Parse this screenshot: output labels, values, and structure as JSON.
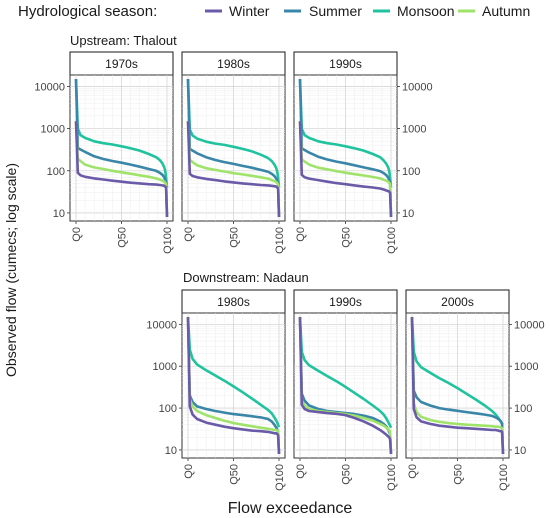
{
  "legend": {
    "title": "Hydrological season:",
    "items": [
      {
        "label": "Winter",
        "color": "#6a5aa8"
      },
      {
        "label": "Summer",
        "color": "#3a86a8"
      },
      {
        "label": "Monsoon",
        "color": "#1fc39e"
      },
      {
        "label": "Autumn",
        "color": "#9fe36a"
      }
    ]
  },
  "axes": {
    "ylabel": "Observed flow (cumecs; log scale)",
    "xlabel": "Flow exceedance",
    "x_ticks": [
      "Q0",
      "Q50",
      "Q100"
    ],
    "y_ticks": [
      "10",
      "100",
      "1000",
      "10000"
    ]
  },
  "chart_data": [
    {
      "type": "line",
      "group": "Upstream: Thalout",
      "title": "1970s",
      "x": [
        0,
        2,
        5,
        10,
        20,
        30,
        40,
        50,
        60,
        70,
        80,
        88,
        92,
        95,
        97,
        98,
        99,
        100
      ],
      "series": [
        {
          "name": "Winter",
          "values": [
            1500,
            90,
            78,
            72,
            66,
            62,
            58,
            55,
            52,
            50,
            48,
            47,
            46,
            45,
            44,
            42,
            40,
            7
          ]
        },
        {
          "name": "Summer",
          "values": [
            15000,
            350,
            320,
            280,
            220,
            190,
            170,
            155,
            140,
            125,
            110,
            100,
            90,
            80,
            70,
            60,
            50,
            7
          ]
        },
        {
          "name": "Monsoon",
          "values": [
            15000,
            1000,
            700,
            600,
            500,
            450,
            420,
            380,
            340,
            300,
            250,
            210,
            180,
            150,
            120,
            100,
            70,
            40
          ]
        },
        {
          "name": "Autumn",
          "values": [
            1500,
            190,
            170,
            140,
            120,
            110,
            100,
            92,
            85,
            78,
            72,
            66,
            62,
            58,
            55,
            52,
            48,
            7
          ]
        }
      ],
      "ylim": [
        8,
        15000
      ],
      "ylog": true
    },
    {
      "type": "line",
      "group": "Upstream: Thalout",
      "title": "1980s",
      "x": [
        0,
        2,
        5,
        10,
        20,
        30,
        40,
        50,
        60,
        70,
        80,
        88,
        92,
        95,
        97,
        98,
        99,
        100
      ],
      "series": [
        {
          "name": "Winter",
          "values": [
            1500,
            85,
            75,
            70,
            64,
            60,
            56,
            53,
            50,
            48,
            46,
            45,
            44,
            43,
            42,
            40,
            38,
            7
          ]
        },
        {
          "name": "Summer",
          "values": [
            15000,
            330,
            300,
            260,
            210,
            180,
            160,
            145,
            130,
            118,
            105,
            95,
            85,
            75,
            65,
            58,
            50,
            7
          ]
        },
        {
          "name": "Monsoon",
          "values": [
            15000,
            950,
            680,
            580,
            490,
            440,
            410,
            370,
            330,
            290,
            240,
            200,
            170,
            140,
            115,
            95,
            70,
            40
          ]
        },
        {
          "name": "Autumn",
          "values": [
            1500,
            180,
            160,
            135,
            115,
            105,
            96,
            88,
            82,
            76,
            70,
            65,
            60,
            57,
            54,
            51,
            47,
            7
          ]
        }
      ],
      "ylim": [
        8,
        15000
      ],
      "ylog": true
    },
    {
      "type": "line",
      "group": "Upstream: Thalout",
      "title": "1990s",
      "x": [
        0,
        2,
        5,
        10,
        20,
        30,
        40,
        50,
        60,
        70,
        80,
        88,
        92,
        95,
        97,
        98,
        99,
        100
      ],
      "series": [
        {
          "name": "Winter",
          "values": [
            1500,
            80,
            70,
            65,
            60,
            55,
            51,
            48,
            45,
            42,
            40,
            38,
            36,
            34,
            33,
            32,
            30,
            7
          ]
        },
        {
          "name": "Summer",
          "values": [
            15000,
            340,
            310,
            270,
            215,
            185,
            165,
            150,
            135,
            120,
            108,
            98,
            88,
            78,
            68,
            60,
            52,
            7
          ]
        },
        {
          "name": "Monsoon",
          "values": [
            15000,
            980,
            700,
            600,
            500,
            450,
            420,
            380,
            340,
            300,
            250,
            210,
            175,
            145,
            118,
            98,
            70,
            40
          ]
        },
        {
          "name": "Autumn",
          "values": [
            1500,
            185,
            165,
            140,
            118,
            108,
            98,
            90,
            83,
            77,
            71,
            66,
            61,
            58,
            55,
            52,
            48,
            7
          ]
        }
      ],
      "ylim": [
        8,
        15000
      ],
      "ylog": true
    },
    {
      "type": "line",
      "group": "Downstream: Nadaun",
      "title": "1980s",
      "x": [
        0,
        2,
        5,
        10,
        20,
        30,
        40,
        50,
        60,
        70,
        80,
        88,
        92,
        95,
        97,
        98,
        99,
        100
      ],
      "series": [
        {
          "name": "Winter",
          "values": [
            15000,
            110,
            70,
            55,
            45,
            40,
            36,
            33,
            31,
            29,
            28,
            27,
            26,
            25,
            25,
            24,
            23,
            7
          ]
        },
        {
          "name": "Summer",
          "values": [
            15000,
            200,
            140,
            110,
            95,
            85,
            78,
            72,
            68,
            64,
            60,
            55,
            48,
            40,
            34,
            30,
            28,
            7
          ]
        },
        {
          "name": "Monsoon",
          "values": [
            15000,
            2500,
            1500,
            1100,
            800,
            600,
            450,
            330,
            240,
            170,
            120,
            90,
            75,
            60,
            50,
            45,
            40,
            35
          ]
        },
        {
          "name": "Autumn",
          "values": [
            15000,
            160,
            110,
            85,
            68,
            58,
            50,
            44,
            40,
            37,
            34,
            32,
            31,
            30,
            30,
            29,
            28,
            7
          ]
        }
      ],
      "ylim": [
        8,
        15000
      ],
      "ylog": true
    },
    {
      "type": "line",
      "group": "Downstream: Nadaun",
      "title": "1990s",
      "x": [
        0,
        2,
        5,
        10,
        20,
        30,
        40,
        50,
        60,
        70,
        80,
        88,
        92,
        95,
        97,
        98,
        99,
        100
      ],
      "series": [
        {
          "name": "Winter",
          "values": [
            15000,
            120,
            95,
            85,
            80,
            76,
            73,
            68,
            58,
            48,
            38,
            30,
            26,
            23,
            21,
            20,
            18,
            7
          ]
        },
        {
          "name": "Summer",
          "values": [
            15000,
            220,
            150,
            115,
            95,
            85,
            80,
            76,
            72,
            66,
            58,
            48,
            42,
            36,
            30,
            27,
            24,
            7
          ]
        },
        {
          "name": "Monsoon",
          "values": [
            15000,
            2200,
            1400,
            1050,
            780,
            580,
            440,
            320,
            230,
            165,
            115,
            85,
            70,
            56,
            46,
            42,
            38,
            34
          ]
        },
        {
          "name": "Autumn",
          "values": [
            15000,
            150,
            115,
            95,
            85,
            80,
            76,
            72,
            66,
            58,
            50,
            42,
            38,
            34,
            31,
            29,
            27,
            7
          ]
        }
      ],
      "ylim": [
        8,
        15000
      ],
      "ylog": true
    },
    {
      "type": "line",
      "group": "Downstream: Nadaun",
      "title": "2000s",
      "x": [
        0,
        2,
        5,
        10,
        20,
        30,
        40,
        50,
        60,
        70,
        80,
        88,
        92,
        95,
        97,
        98,
        99,
        100
      ],
      "series": [
        {
          "name": "Winter",
          "values": [
            15000,
            95,
            60,
            48,
            42,
            38,
            36,
            34,
            33,
            32,
            31,
            30,
            30,
            29,
            28,
            28,
            27,
            7
          ]
        },
        {
          "name": "Summer",
          "values": [
            15000,
            260,
            180,
            140,
            115,
            100,
            92,
            86,
            80,
            75,
            70,
            65,
            60,
            55,
            50,
            46,
            42,
            7
          ]
        },
        {
          "name": "Monsoon",
          "values": [
            15000,
            2200,
            1300,
            950,
            700,
            520,
            400,
            300,
            220,
            160,
            115,
            85,
            70,
            58,
            50,
            46,
            42,
            40
          ]
        },
        {
          "name": "Autumn",
          "values": [
            15000,
            130,
            80,
            62,
            52,
            47,
            44,
            42,
            40,
            39,
            38,
            37,
            36,
            36,
            35,
            34,
            33,
            7
          ]
        }
      ],
      "ylim": [
        8,
        15000
      ],
      "ylog": true
    }
  ]
}
